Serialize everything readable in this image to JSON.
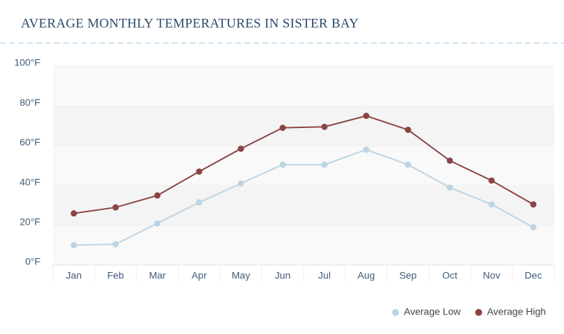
{
  "chart_data": {
    "type": "line",
    "title": "AVERAGE MONTHLY TEMPERATURES IN SISTER BAY",
    "categories": [
      "Jan",
      "Feb",
      "Mar",
      "Apr",
      "May",
      "Jun",
      "Jul",
      "Aug",
      "Sep",
      "Oct",
      "Nov",
      "Dec"
    ],
    "series": [
      {
        "name": "Average Low",
        "color": "#bed4e3",
        "values": [
          10,
          10.5,
          21,
          31.5,
          41,
          50.5,
          50.5,
          58,
          50.5,
          39,
          30.5,
          19
        ]
      },
      {
        "name": "Average High",
        "color": "#8b4444",
        "values": [
          26,
          29,
          35,
          47,
          58.5,
          69,
          69.5,
          75,
          68,
          52.5,
          42.5,
          30.5
        ]
      }
    ],
    "ylim": [
      0,
      100
    ],
    "yticks": [
      {
        "value": 0,
        "label": "0°F"
      },
      {
        "value": 20,
        "label": "20°F"
      },
      {
        "value": 40,
        "label": "40°F"
      },
      {
        "value": 60,
        "label": "60°F"
      },
      {
        "value": 80,
        "label": "80°F"
      },
      {
        "value": 100,
        "label": "100°F"
      }
    ],
    "grid": true,
    "legend": "bottom-right"
  }
}
